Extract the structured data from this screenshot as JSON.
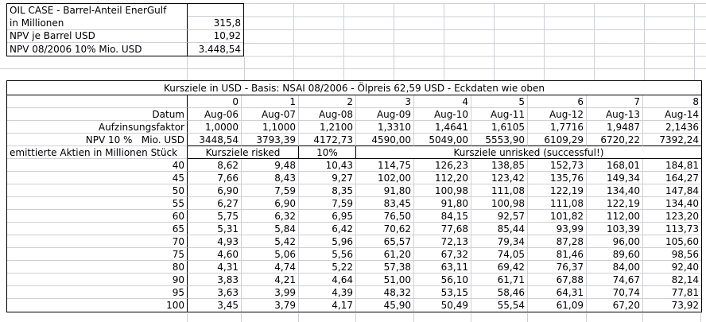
{
  "top_block": {
    "rows": [
      {
        "label": "OIL CASE - Barrel-Anteil EnerGulf",
        "value": ""
      },
      {
        "label": "in Millionen",
        "value": "315,8"
      },
      {
        "label": "NPV je Barrel USD",
        "value": "10,92"
      },
      {
        "label": "NPV 08/2006 10% Mio. USD",
        "value": "3.448,54"
      }
    ]
  },
  "table": {
    "title": "Kursziele in USD - Basis: NSAI 08/2006 - Ölpreis 62,59 USD - Eckdaten wie oben",
    "header_rows": [
      {
        "key": "period",
        "label": "",
        "values": [
          "0",
          "1",
          "2",
          "3",
          "4",
          "5",
          "6",
          "7",
          "8"
        ]
      },
      {
        "key": "datum",
        "label": "Datum",
        "values": [
          "Aug-06",
          "Aug-07",
          "Aug-08",
          "Aug-09",
          "Aug-10",
          "Aug-11",
          "Aug-12",
          "Aug-13",
          "Aug-14"
        ]
      },
      {
        "key": "aufzinsungsfaktor",
        "label": "Aufzinsungsfaktor",
        "values": [
          "1,0000",
          "1,1000",
          "1,2100",
          "1,3310",
          "1,4641",
          "1,6105",
          "1,7716",
          "1,9487",
          "2,1436"
        ]
      },
      {
        "key": "npv",
        "label": "NPV 10 %   Mio. USD",
        "values": [
          "3448,54",
          "3793,39",
          "4172,73",
          "4590,00",
          "5049,00",
          "5553,90",
          "6109,29",
          "6720,22",
          "7392,24"
        ]
      }
    ],
    "section_row": {
      "label": "emittierte Aktien in Millionen Stück",
      "risked_label": "Kursziele risked",
      "risked_discount": "10%",
      "unrisked_label": "Kursziele unrisked (successful!)"
    },
    "data_rows": [
      {
        "label": "40",
        "values": [
          "8,62",
          "9,48",
          "10,43",
          "114,75",
          "126,23",
          "138,85",
          "152,73",
          "168,01",
          "184,81"
        ]
      },
      {
        "label": "45",
        "values": [
          "7,66",
          "8,43",
          "9,27",
          "102,00",
          "112,20",
          "123,42",
          "135,76",
          "149,34",
          "164,27"
        ]
      },
      {
        "label": "50",
        "values": [
          "6,90",
          "7,59",
          "8,35",
          "91,80",
          "100,98",
          "111,08",
          "122,19",
          "134,40",
          "147,84"
        ]
      },
      {
        "label": "55",
        "values": [
          "6,27",
          "6,90",
          "7,59",
          "83,45",
          "91,80",
          "100,98",
          "111,08",
          "122,19",
          "134,40"
        ]
      },
      {
        "label": "60",
        "values": [
          "5,75",
          "6,32",
          "6,95",
          "76,50",
          "84,15",
          "92,57",
          "101,82",
          "112,00",
          "123,20"
        ]
      },
      {
        "label": "65",
        "values": [
          "5,31",
          "5,84",
          "6,42",
          "70,62",
          "77,68",
          "85,44",
          "93,99",
          "103,39",
          "113,73"
        ]
      },
      {
        "label": "70",
        "values": [
          "4,93",
          "5,42",
          "5,96",
          "65,57",
          "72,13",
          "79,34",
          "87,28",
          "96,00",
          "105,60"
        ]
      },
      {
        "label": "75",
        "values": [
          "4,60",
          "5,06",
          "5,56",
          "61,20",
          "67,32",
          "74,05",
          "81,46",
          "89,60",
          "98,56"
        ]
      },
      {
        "label": "80",
        "values": [
          "4,31",
          "4,74",
          "5,22",
          "57,38",
          "63,11",
          "69,42",
          "76,37",
          "84,00",
          "92,40"
        ]
      },
      {
        "label": "90",
        "values": [
          "3,83",
          "4,21",
          "4,64",
          "51,00",
          "56,10",
          "61,71",
          "67,88",
          "74,67",
          "82,14"
        ]
      },
      {
        "label": "95",
        "values": [
          "3,63",
          "3,99",
          "4,39",
          "48,32",
          "53,15",
          "58,46",
          "64,31",
          "70,74",
          "77,81"
        ]
      },
      {
        "label": "100",
        "values": [
          "3,45",
          "3,79",
          "4,17",
          "45,90",
          "50,49",
          "55,54",
          "61,09",
          "67,20",
          "73,92"
        ]
      }
    ]
  }
}
